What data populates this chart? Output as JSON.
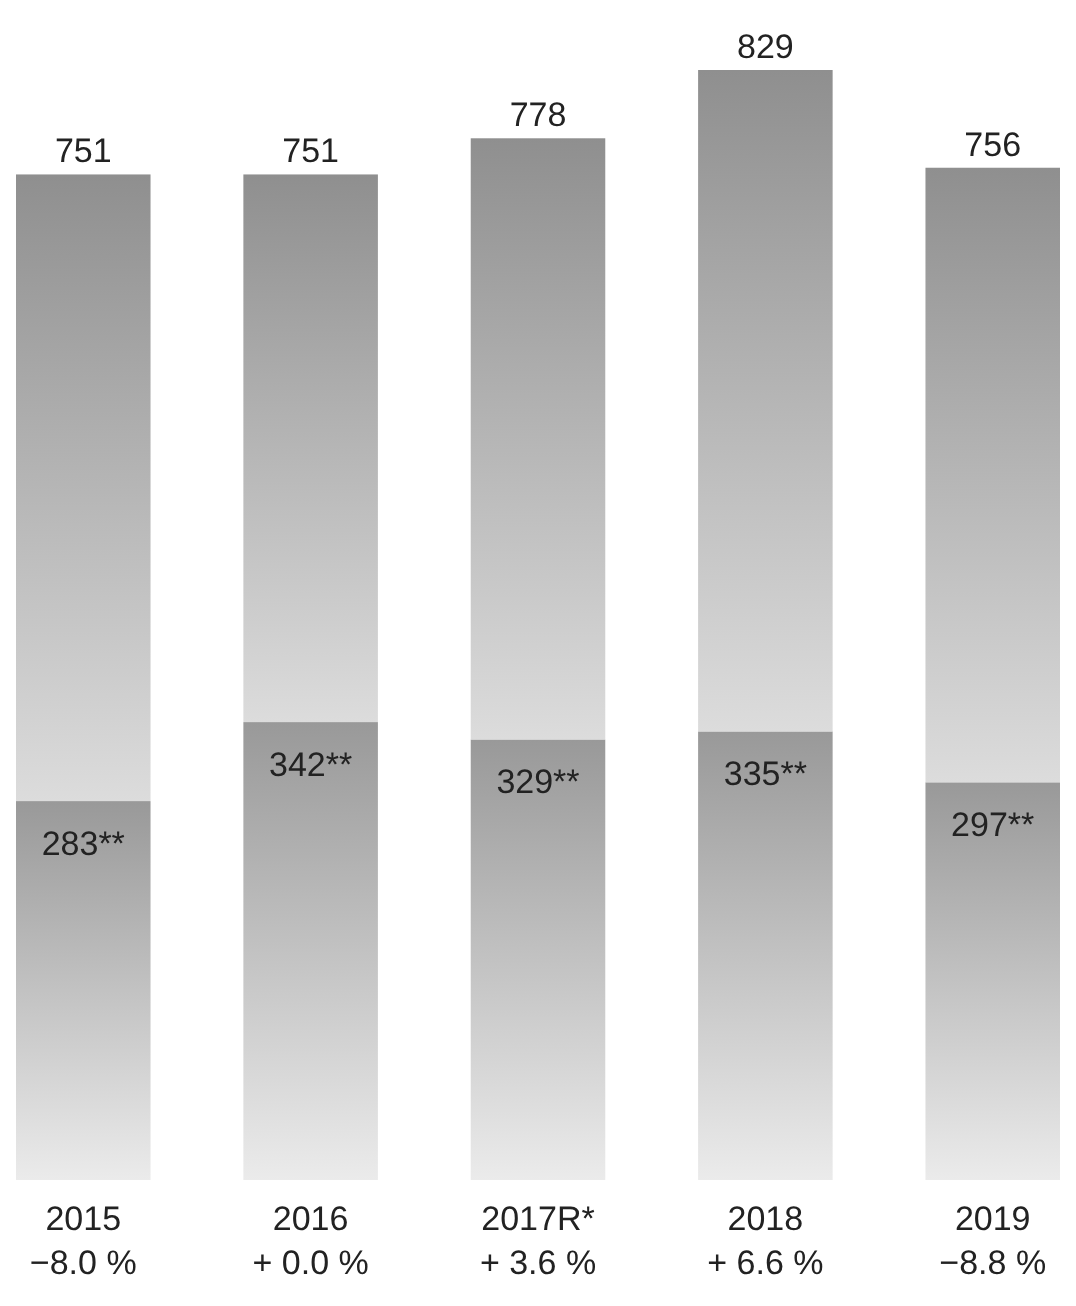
{
  "chart_data": {
    "type": "bar",
    "stacked": true,
    "categories": [
      "2015",
      "2016",
      "2017R*",
      "2018",
      "2019"
    ],
    "tick_labels": "x",
    "series": [
      {
        "color": "#b4b4b4",
        "values": [
          283,
          342,
          329,
          335,
          297
        ],
        "value_labels": [
          "283**",
          "342**",
          "329**",
          "335**",
          "297**"
        ]
      },
      {
        "color": "#a8a8a8",
        "values": [
          468,
          409,
          449,
          494,
          459
        ]
      }
    ],
    "totals": [
      "751",
      "751",
      "778",
      "829",
      "756"
    ],
    "annotations": [
      "−8.0 %",
      "+ 0.0 %",
      "+ 3.6 %",
      "+ 6.6 %",
      "−8.8 %"
    ]
  }
}
